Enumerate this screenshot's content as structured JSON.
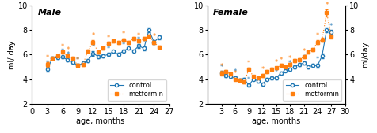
{
  "chart_data": [
    {
      "type": "line",
      "title": "Male",
      "x_label": "age, months",
      "y_label": "ml/ day",
      "x": [
        3,
        4,
        5,
        6,
        7,
        8,
        9,
        10,
        11,
        12,
        13,
        14,
        15,
        16,
        17,
        18,
        19,
        20,
        21,
        22,
        23,
        24,
        25
      ],
      "xlim": [
        0,
        27
      ],
      "ylim": [
        2,
        10
      ],
      "xticks": [
        0,
        3,
        6,
        9,
        12,
        15,
        18,
        21,
        24,
        27
      ],
      "yticks": [
        2,
        4,
        6,
        8,
        10
      ],
      "legend": "lower right",
      "annotation_text": "*",
      "series": [
        {
          "name": "control",
          "marker": "o",
          "line_style": "solid",
          "values": [
            4.8,
            5.7,
            5.75,
            5.8,
            5.55,
            5.4,
            5.1,
            5.3,
            5.5,
            6.1,
            5.85,
            5.9,
            6.0,
            6.25,
            6.0,
            6.3,
            6.5,
            6.3,
            6.7,
            6.5,
            8.0,
            7.0,
            7.4
          ],
          "error": [
            0.18,
            0.12,
            0.12,
            0.12,
            0.12,
            0.12,
            0.12,
            0.12,
            0.12,
            0.18,
            0.12,
            0.12,
            0.12,
            0.12,
            0.12,
            0.12,
            0.12,
            0.12,
            0.18,
            0.18,
            0.22,
            0.18,
            0.18
          ],
          "starred_x": [
            3,
            6,
            7,
            9,
            12,
            15,
            18,
            21,
            22
          ]
        },
        {
          "name": "metformin",
          "marker": "s",
          "line_style": "dotted",
          "values": [
            5.2,
            5.7,
            5.9,
            6.2,
            5.9,
            5.7,
            5.1,
            5.2,
            6.3,
            7.0,
            6.2,
            6.5,
            6.9,
            7.1,
            7.0,
            7.2,
            7.0,
            7.3,
            7.1,
            7.3,
            7.5,
            7.0,
            6.6
          ],
          "error": [
            0.18,
            0.12,
            0.12,
            0.12,
            0.12,
            0.12,
            0.12,
            0.12,
            0.12,
            0.18,
            0.12,
            0.12,
            0.12,
            0.12,
            0.12,
            0.12,
            0.12,
            0.12,
            0.12,
            0.12,
            0.12,
            0.12,
            0.12
          ],
          "starred_x": [
            3,
            6,
            7,
            9,
            12,
            15,
            18,
            21,
            24
          ]
        }
      ]
    },
    {
      "type": "line",
      "title": "Female",
      "x_label": "age, months",
      "y2_label": "ml/day",
      "x": [
        3,
        4,
        5,
        6,
        7,
        8,
        9,
        10,
        11,
        12,
        13,
        14,
        15,
        16,
        17,
        18,
        19,
        20,
        21,
        22,
        23,
        24,
        25,
        26,
        27
      ],
      "xlim": [
        0,
        30
      ],
      "ylim": [
        2,
        10
      ],
      "y2lim": [
        2,
        10
      ],
      "xticks": [
        3,
        6,
        9,
        12,
        15,
        18,
        21,
        24,
        27,
        30
      ],
      "yticks": [
        2,
        4,
        6,
        8,
        10
      ],
      "y2ticks": [
        4,
        6,
        8,
        10
      ],
      "legend": "lower right",
      "annotation_text": "*",
      "series": [
        {
          "name": "control",
          "marker": "o",
          "line_style": "solid",
          "values": [
            4.5,
            4.3,
            4.2,
            4.1,
            3.9,
            4.0,
            3.5,
            4.0,
            3.85,
            3.6,
            4.0,
            4.1,
            4.1,
            4.5,
            4.7,
            4.8,
            5.0,
            5.2,
            5.3,
            5.0,
            5.1,
            5.1,
            5.9,
            8.0,
            7.8
          ],
          "error": [
            0.15,
            0.12,
            0.12,
            0.12,
            0.12,
            0.12,
            0.12,
            0.12,
            0.12,
            0.12,
            0.12,
            0.12,
            0.12,
            0.12,
            0.12,
            0.12,
            0.12,
            0.12,
            0.12,
            0.12,
            0.12,
            0.18,
            0.18,
            0.22,
            0.18
          ],
          "starred_x": [
            3,
            6,
            9,
            12,
            15,
            16,
            18,
            21,
            24,
            27
          ]
        },
        {
          "name": "metformin",
          "marker": "s",
          "line_style": "dotted",
          "values": [
            4.5,
            4.6,
            4.4,
            4.0,
            3.9,
            3.8,
            4.8,
            4.2,
            4.1,
            4.3,
            4.6,
            4.8,
            4.9,
            5.1,
            5.0,
            5.2,
            5.5,
            5.6,
            5.8,
            6.2,
            6.4,
            7.0,
            7.2,
            9.4,
            7.5
          ],
          "error": [
            0.18,
            0.12,
            0.12,
            0.12,
            0.12,
            0.12,
            0.12,
            0.12,
            0.12,
            0.12,
            0.12,
            0.12,
            0.12,
            0.12,
            0.12,
            0.12,
            0.12,
            0.12,
            0.12,
            0.12,
            0.12,
            0.18,
            0.18,
            0.28,
            0.18
          ],
          "starred_x": [
            3,
            6,
            9,
            12,
            15,
            16,
            18,
            21,
            24,
            26
          ]
        }
      ]
    }
  ]
}
